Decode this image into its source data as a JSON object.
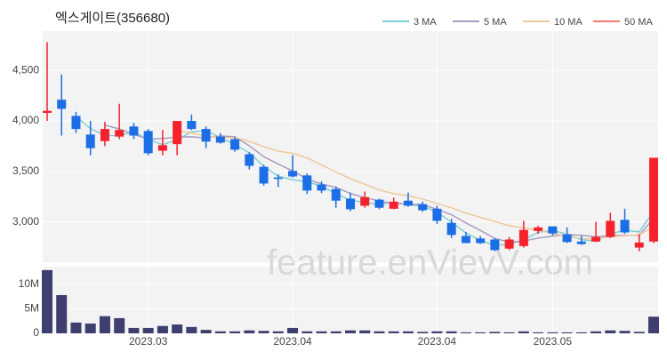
{
  "chart_data": {
    "type": "candlestick",
    "title": "엑스게이트(356680)",
    "watermark": "feature.enVievV.com",
    "categories": [
      null,
      null,
      null,
      null,
      null,
      null,
      null,
      "2023.03",
      null,
      null,
      null,
      null,
      null,
      null,
      null,
      null,
      null,
      "2023.04",
      null,
      null,
      null,
      null,
      null,
      null,
      null,
      null,
      null,
      "2023.04",
      null,
      null,
      null,
      null,
      null,
      null,
      null,
      "2023.05",
      null,
      null,
      null,
      null,
      null,
      null,
      null
    ],
    "open": [
      4080,
      4210,
      4050,
      3865,
      3800,
      3845,
      3945,
      3900,
      3705,
      3770,
      4000,
      3920,
      3845,
      3820,
      3670,
      3545,
      3440,
      3505,
      3460,
      3370,
      3325,
      3230,
      3160,
      3220,
      3130,
      3210,
      3175,
      3130,
      2990,
      2860,
      2835,
      2825,
      2735,
      2760,
      2910,
      2955,
      2875,
      2805,
      2805,
      2850,
      3020,
      2745,
      2805
    ],
    "high": [
      4780,
      4460,
      4090,
      4000,
      3990,
      4170,
      3980,
      3920,
      3910,
      4000,
      4065,
      3945,
      3880,
      3840,
      3690,
      3565,
      3470,
      3660,
      3480,
      3400,
      3350,
      3290,
      3300,
      3230,
      3240,
      3290,
      3200,
      3160,
      3030,
      2900,
      2860,
      2840,
      2850,
      3010,
      2960,
      2955,
      2945,
      2860,
      3000,
      3090,
      3130,
      2880,
      3635
    ],
    "low": [
      4000,
      3855,
      3880,
      3660,
      3750,
      3820,
      3820,
      3660,
      3660,
      3660,
      3910,
      3730,
      3775,
      3695,
      3520,
      3360,
      3345,
      3440,
      3275,
      3285,
      3140,
      3105,
      3140,
      3125,
      3125,
      3150,
      3100,
      2980,
      2840,
      2790,
      2780,
      2710,
      2720,
      2745,
      2880,
      2865,
      2790,
      2770,
      2800,
      2840,
      2880,
      2710,
      2790
    ],
    "close": [
      4100,
      4120,
      3920,
      3730,
      3920,
      3910,
      3855,
      3680,
      3760,
      4000,
      3920,
      3795,
      3785,
      3715,
      3555,
      3380,
      3425,
      3450,
      3310,
      3310,
      3210,
      3125,
      3245,
      3140,
      3200,
      3160,
      3115,
      3010,
      2870,
      2790,
      2790,
      2720,
      2825,
      2920,
      2945,
      2885,
      2800,
      2780,
      2850,
      3010,
      2895,
      2795,
      3635
    ],
    "up_color": "#f5222d",
    "down_color": "#1b6ee5",
    "ylim": [
      2600,
      4890
    ],
    "yticks": [
      {
        "value": 3000,
        "label": "3,000"
      },
      {
        "value": 3500,
        "label": "3,500"
      },
      {
        "value": 4000,
        "label": "4,000"
      },
      {
        "value": 4500,
        "label": "4,500"
      }
    ],
    "grid": true,
    "legend": "top-right",
    "series": [
      {
        "name": "3 MA",
        "color": "#7fcfd3",
        "values": [
          null,
          null,
          4047,
          3923,
          3857,
          3853,
          3895,
          3815,
          3765,
          3813,
          3893,
          3905,
          3833,
          3765,
          3685,
          3550,
          3453,
          3418,
          3395,
          3357,
          3277,
          3215,
          3193,
          3170,
          3195,
          3167,
          3158,
          3095,
          2998,
          2890,
          2817,
          2767,
          2778,
          2822,
          2897,
          2917,
          2877,
          2822,
          2810,
          2880,
          2918,
          2900,
          3108
        ]
      },
      {
        "name": "5 MA",
        "color": "#aa9dc2",
        "values": [
          null,
          null,
          null,
          null,
          3958,
          3920,
          3867,
          3819,
          3825,
          3841,
          3843,
          3831,
          3852,
          3843,
          3754,
          3646,
          3572,
          3505,
          3424,
          3375,
          3341,
          3281,
          3240,
          3206,
          3184,
          3174,
          3172,
          3125,
          3071,
          2989,
          2915,
          2836,
          2799,
          2809,
          2840,
          2859,
          2875,
          2866,
          2852,
          2865,
          2867,
          2866,
          3037
        ]
      },
      {
        "name": "10 MA",
        "color": "#efc99c",
        "values": [
          null,
          null,
          null,
          null,
          null,
          null,
          null,
          null,
          null,
          3900,
          3882,
          3849,
          3836,
          3834,
          3798,
          3745,
          3702,
          3679,
          3634,
          3565,
          3494,
          3427,
          3373,
          3315,
          3280,
          3258,
          3227,
          3183,
          3139,
          3087,
          3045,
          3004,
          2962,
          2940,
          2915,
          2887,
          2856,
          2833,
          2831,
          2853,
          2863,
          2871,
          2952
        ]
      },
      {
        "name": "50 MA",
        "color": "#f2806f",
        "values": [
          null,
          null,
          null,
          null,
          null,
          null,
          null,
          null,
          null,
          null,
          null,
          null,
          null,
          null,
          null,
          null,
          null,
          null,
          null,
          null,
          null,
          null,
          null,
          null,
          null,
          null,
          null,
          null,
          null,
          null,
          null,
          null,
          null,
          null,
          null,
          null,
          null,
          null,
          null,
          null,
          null,
          null,
          null
        ]
      }
    ],
    "volume": {
      "color": "#3e3f6e",
      "ylim": [
        0,
        13600000
      ],
      "yticks": [
        0,
        {
          "value": 5000000,
          "label": "5M"
        },
        {
          "value": 10000000,
          "label": "10M"
        }
      ],
      "values": [
        12900000,
        7800000,
        2200000,
        2000000,
        3500000,
        3100000,
        1100000,
        1100000,
        1500000,
        1800000,
        1300000,
        700000,
        400000,
        400000,
        600000,
        500000,
        400000,
        1100000,
        400000,
        400000,
        400000,
        600000,
        600000,
        400000,
        400000,
        400000,
        300000,
        400000,
        400000,
        200000,
        200000,
        300000,
        200000,
        400000,
        200000,
        200000,
        200000,
        200000,
        400000,
        600000,
        500000,
        300000,
        3400000
      ]
    }
  }
}
